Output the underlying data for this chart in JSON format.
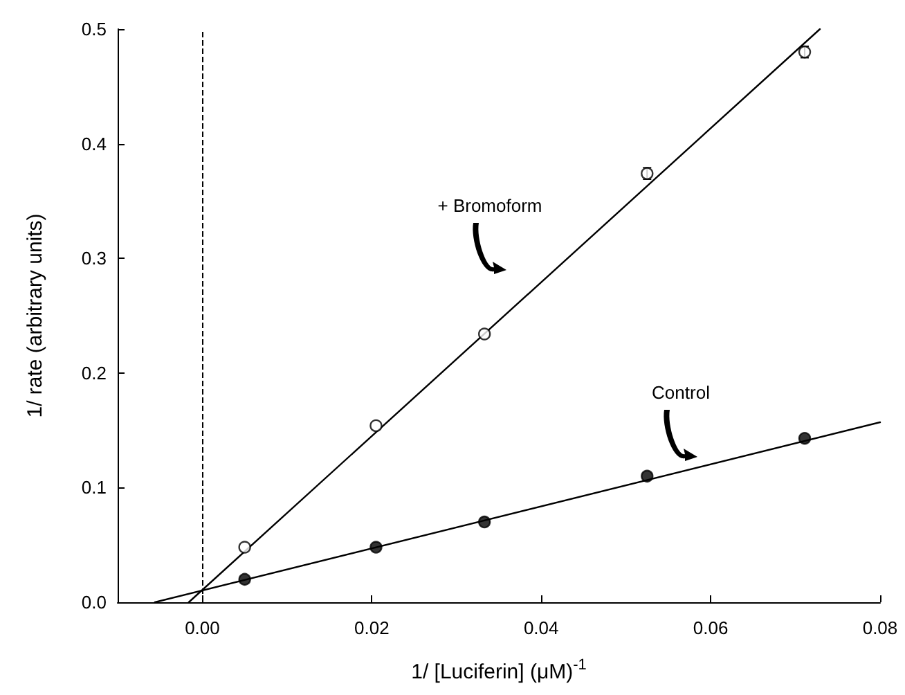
{
  "chart_data": {
    "type": "scatter",
    "xlabel": "1/ [Luciferin] (μM)$^{-1}$",
    "ylabel": "1/ rate (arbitrary units)",
    "xlim": [
      -0.01,
      0.08
    ],
    "xticks": [
      {
        "value": 0,
        "label": "0.00"
      },
      0.02,
      0.04,
      0.06,
      0.08
    ],
    "ylim": [
      0,
      0.5
    ],
    "yticks": [
      {
        "value": 0,
        "label": "0.0"
      },
      0.1,
      0.2,
      0.3,
      0.4,
      0.5
    ],
    "grid": false,
    "marker": "circle",
    "series": [
      {
        "color": "#000000",
        "x": [
          0.005,
          0.0205,
          0.0333,
          0.0525,
          0.0711
        ],
        "values": [
          0.048,
          0.154,
          0.234,
          0.374,
          0.48
        ],
        "errors": [
          null,
          null,
          null,
          0.005,
          0.005
        ]
      },
      {
        "color": "#000000",
        "x": [
          0.005,
          0.0205,
          0.0333,
          0.0525,
          0.0711
        ],
        "values": [
          0.02,
          0.048,
          0.07,
          0.11,
          0.143
        ]
      },
      {
        "type": "line",
        "color": "#000000",
        "marker": "none",
        "x": [
          -0.0016,
          0.0729
        ],
        "values": [
          0,
          0.5
        ]
      },
      {
        "type": "line",
        "color": "#000000",
        "marker": "none",
        "x": [
          -0.0056,
          0.08
        ],
        "values": [
          0,
          0.157
        ]
      }
    ],
    "ref_lines": [
      {
        "axis": "x",
        "value": 0,
        "line_style": "dashed",
        "color": "#000000"
      }
    ],
    "annotations": [
      "+ Bromoform",
      "Control"
    ]
  }
}
